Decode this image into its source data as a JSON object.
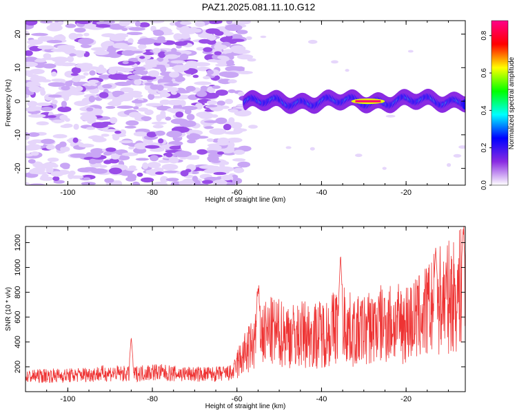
{
  "title": "PAZ1.2025.081.11.10.G12",
  "chart_data": [
    {
      "type": "heatmap",
      "title": "PAZ1.2025.081.11.10.G12",
      "xlabel": "Height of straight line (km)",
      "ylabel": "Frequency (Hz)",
      "xlim": [
        -110,
        -6
      ],
      "ylim": [
        -25,
        24
      ],
      "x_ticks": [
        -100,
        -80,
        -60,
        -40,
        -20
      ],
      "y_ticks": [
        20,
        10,
        0,
        -10,
        -20
      ],
      "colorbar": {
        "label": "Normalized spectral amplitude",
        "range": [
          0,
          0.88
        ],
        "ticks": [
          0.0,
          0.2,
          0.4,
          0.6,
          0.8
        ],
        "colormap": [
          "#ffffff",
          "#8a2be2",
          "#0000ff",
          "#00ffff",
          "#00ff00",
          "#ffff00",
          "#ff0000",
          "#ff0088"
        ]
      },
      "regions": [
        {
          "x_range": [
            -110,
            -58
          ],
          "freq_range": [
            -25,
            24
          ],
          "amplitude": 0.05,
          "pattern": "noise"
        },
        {
          "x_range": [
            -58,
            -6
          ],
          "freq_center_start": 0.5,
          "freq_center_end": 1.0,
          "freq_halfwidth": 1.5,
          "amplitude": 0.4,
          "pattern": "carrier"
        },
        {
          "x_range": [
            -32,
            -26
          ],
          "freq_center": 0,
          "amplitude": 0.86,
          "pattern": "peak"
        }
      ]
    },
    {
      "type": "line",
      "xlabel": "Height of straight line (km)",
      "ylabel": "SNR (10 * v/v)",
      "xlim": [
        -110,
        -6
      ],
      "ylim": [
        0,
        1330
      ],
      "x_ticks": [
        -100,
        -80,
        -60,
        -40,
        -20
      ],
      "y_ticks": [
        200,
        400,
        600,
        800,
        1000,
        1200
      ],
      "color": "#ee3333",
      "series": [
        {
          "x": [
            -110,
            -105,
            -100,
            -95,
            -90,
            -85,
            -80,
            -75,
            -70,
            -65,
            -61,
            -60,
            -58,
            -56,
            -55,
            -54,
            -52,
            -50,
            -48,
            -46,
            -44,
            -42,
            -40,
            -38,
            -36,
            -35,
            -34,
            -32,
            -30,
            -28,
            -26,
            -24,
            -22,
            -20,
            -18,
            -16,
            -14,
            -12,
            -10,
            -8,
            -6
          ],
          "y": [
            120,
            130,
            130,
            140,
            150,
            140,
            160,
            145,
            140,
            140,
            150,
            220,
            310,
            380,
            560,
            450,
            480,
            470,
            470,
            440,
            470,
            450,
            470,
            490,
            560,
            580,
            520,
            470,
            500,
            520,
            540,
            560,
            540,
            560,
            580,
            620,
            680,
            740,
            760,
            780,
            900
          ]
        }
      ],
      "spikes": [
        {
          "x": -85,
          "y": 440
        },
        {
          "x": -55,
          "y": 840
        },
        {
          "x": -35.5,
          "y": 1110
        },
        {
          "x": -13,
          "y": 1160
        },
        {
          "x": -6.5,
          "y": 1320
        }
      ]
    }
  ]
}
